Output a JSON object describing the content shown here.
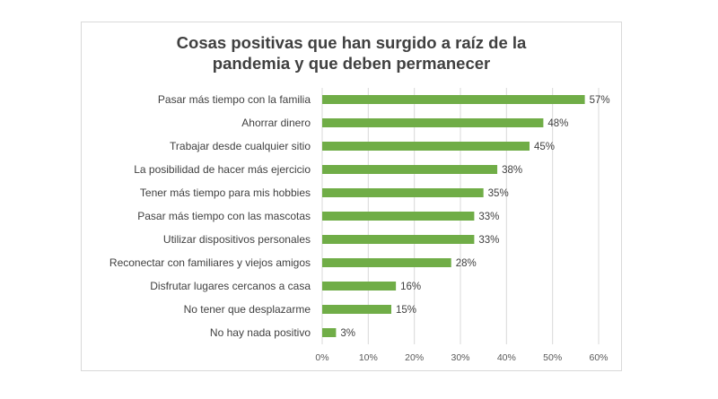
{
  "chart_data": {
    "type": "bar",
    "orientation": "horizontal",
    "title": [
      "Cosas positivas que han surgido a raíz de la",
      "pandemia y que deben permanecer"
    ],
    "categories": [
      "Pasar más tiempo con la familia",
      "Ahorrar dinero",
      "Trabajar desde cualquier sitio",
      "La posibilidad de hacer más ejercicio",
      "Tener más tiempo para mis hobbies",
      "Pasar más tiempo con las mascotas",
      "Utilizar dispositivos personales",
      "Reconectar con familiares y viejos amigos",
      "Disfrutar lugares cercanos a casa",
      "No tener que desplazarme",
      "No hay nada positivo"
    ],
    "values": [
      57,
      48,
      45,
      38,
      35,
      33,
      33,
      28,
      16,
      15,
      3
    ],
    "value_labels": [
      "57%",
      "48%",
      "45%",
      "38%",
      "35%",
      "33%",
      "33%",
      "28%",
      "16%",
      "15%",
      "3%"
    ],
    "xlim": [
      0,
      60
    ],
    "x_ticks": [
      0,
      10,
      20,
      30,
      40,
      50,
      60
    ],
    "x_tick_labels": [
      "0%",
      "10%",
      "20%",
      "30%",
      "40%",
      "50%",
      "60%"
    ],
    "grid": true,
    "bar_color": "#70ad47",
    "grid_color": "#d9d9d9"
  }
}
